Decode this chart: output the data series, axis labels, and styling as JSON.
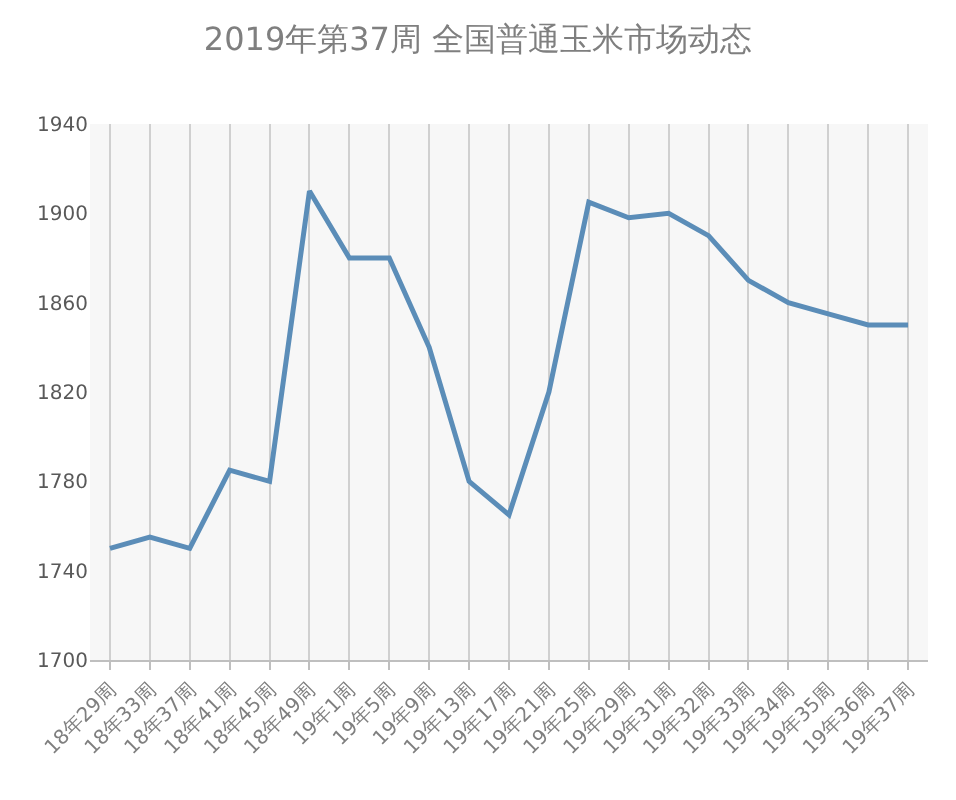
{
  "chart_data": {
    "type": "line",
    "title": "2019年第37周 全国普通玉米市场动态",
    "categories": [
      "18年29周",
      "18年33周",
      "18年37周",
      "18年41周",
      "18年45周",
      "18年49周",
      "19年1周",
      "19年5周",
      "19年9周",
      "19年13周",
      "19年17周",
      "19年21周",
      "19年25周",
      "19年29周",
      "19年31周",
      "19年32周",
      "19年33周",
      "19年34周",
      "19年35周",
      "19年36周",
      "19年37周"
    ],
    "series": [
      {
        "color": "#5b8db8",
        "values": [
          1750,
          1755,
          1750,
          1785,
          1780,
          1910,
          1880,
          1880,
          1840,
          1780,
          1765,
          1820,
          1905,
          1898,
          1900,
          1890,
          1870,
          1860,
          1855,
          1850,
          1850
        ]
      }
    ],
    "ylim": [
      1700,
      1940
    ],
    "yticks": [
      1700,
      1740,
      1780,
      1820,
      1860,
      1900,
      1940
    ],
    "grid": "x",
    "marker": "none",
    "line_style": "solid"
  }
}
